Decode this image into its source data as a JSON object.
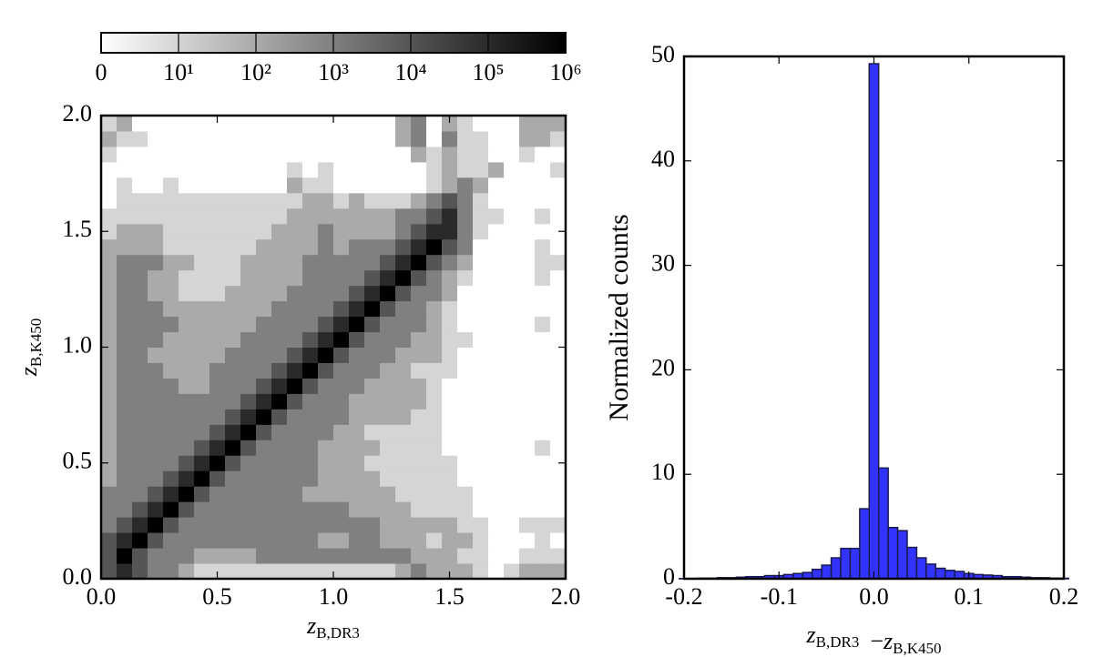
{
  "chart_data": [
    {
      "type": "heatmap",
      "x_label": {
        "symbol": "z",
        "subscript": "B,DR3"
      },
      "y_label": {
        "symbol": "z",
        "subscript": "B,K450"
      },
      "xlim": [
        0,
        2
      ],
      "ylim": [
        0,
        2
      ],
      "xticks": [
        {
          "value": 0,
          "label": "0.0"
        },
        0.5,
        {
          "value": 1,
          "label": "1.0"
        },
        1.5,
        {
          "value": 2,
          "label": "2.0"
        }
      ],
      "yticks": [
        {
          "value": 0,
          "label": "0.0"
        },
        0.5,
        {
          "value": 1,
          "label": "1.0"
        },
        1.5,
        {
          "value": 2,
          "label": "2.0"
        }
      ],
      "colorbar": {
        "colormap": "gray_r",
        "clim": [
          0,
          1000000
        ],
        "ticks": [
          0,
          {
            "value": 10,
            "label": "10¹"
          },
          {
            "value": 100,
            "label": "10²"
          },
          {
            "value": 1000,
            "label": "10³"
          },
          {
            "value": 10000,
            "label": "10⁴"
          },
          {
            "value": 100000,
            "label": "10⁵"
          },
          {
            "value": 1000000,
            "label": "10⁶"
          }
        ]
      },
      "values": [
        [
          10000,
          100000,
          10000,
          1000,
          1000,
          100,
          10,
          10,
          10,
          10,
          10,
          10,
          10,
          10,
          10,
          10,
          10,
          10,
          10,
          100,
          1000,
          100,
          100,
          100,
          10,
          0,
          10,
          100,
          100,
          100
        ],
        [
          10000,
          1000000,
          10000,
          1000,
          1000,
          1000,
          100,
          100,
          100,
          100,
          1000,
          1000,
          1000,
          1000,
          1000,
          1000,
          1000,
          1000,
          1000,
          1000,
          100,
          100,
          100,
          10,
          10,
          0,
          0,
          10,
          10,
          10
        ],
        [
          10000,
          100000,
          1000000,
          10000,
          1000,
          1000,
          1000,
          1000,
          1000,
          1000,
          1000,
          1000,
          1000,
          1000,
          100,
          100,
          1000,
          1000,
          100,
          100,
          100,
          10,
          100,
          100,
          10,
          0,
          0,
          0,
          10,
          0
        ],
        [
          1000,
          10000,
          100000,
          1000000,
          10000,
          1000,
          1000,
          1000,
          1000,
          1000,
          1000,
          1000,
          1000,
          1000,
          1000,
          1000,
          1000,
          1000,
          100,
          100,
          100,
          100,
          100,
          10,
          10,
          0,
          0,
          10,
          10,
          10
        ],
        [
          1000,
          1000,
          10000,
          100000,
          1000000,
          10000,
          1000,
          1000,
          1000,
          1000,
          1000,
          1000,
          1000,
          1000,
          1000,
          1000,
          100,
          100,
          100,
          100,
          10,
          10,
          10,
          10,
          0,
          0,
          0,
          0,
          0,
          0
        ],
        [
          1000,
          1000,
          1000,
          10000,
          100000,
          1000000,
          10000,
          1000,
          1000,
          1000,
          1000,
          1000,
          1000,
          100,
          100,
          100,
          100,
          100,
          100,
          10,
          10,
          10,
          10,
          10,
          0,
          0,
          0,
          0,
          0,
          0
        ],
        [
          100,
          1000,
          1000,
          1000,
          10000,
          100000,
          1000000,
          10000,
          1000,
          1000,
          1000,
          1000,
          1000,
          1000,
          100,
          100,
          100,
          100,
          10,
          10,
          10,
          10,
          10,
          0,
          0,
          0,
          0,
          0,
          0,
          0
        ],
        [
          100,
          1000,
          1000,
          1000,
          1000,
          10000,
          100000,
          1000000,
          10000,
          1000,
          1000,
          1000,
          1000,
          1000,
          100,
          100,
          100,
          10,
          10,
          10,
          10,
          10,
          10,
          0,
          0,
          0,
          0,
          0,
          0,
          0
        ],
        [
          100,
          1000,
          1000,
          1000,
          1000,
          1000,
          10000,
          100000,
          1000000,
          10000,
          1000,
          1000,
          1000,
          1000,
          100,
          100,
          100,
          100,
          10,
          10,
          10,
          10,
          0,
          0,
          0,
          0,
          0,
          0,
          10,
          0
        ],
        [
          100,
          1000,
          1000,
          1000,
          1000,
          1000,
          1000,
          10000,
          100000,
          1000000,
          10000,
          1000,
          1000,
          1000,
          1000,
          100,
          100,
          10,
          10,
          10,
          10,
          10,
          0,
          0,
          0,
          0,
          0,
          0,
          0,
          0
        ],
        [
          100,
          1000,
          1000,
          1000,
          1000,
          1000,
          1000,
          1000,
          10000,
          100000,
          1000000,
          10000,
          1000,
          1000,
          1000,
          1000,
          100,
          100,
          100,
          100,
          10,
          10,
          0,
          0,
          0,
          0,
          0,
          0,
          0,
          0
        ],
        [
          100,
          1000,
          1000,
          1000,
          1000,
          1000,
          1000,
          1000,
          1000,
          10000,
          100000,
          1000000,
          10000,
          1000,
          1000,
          1000,
          100,
          100,
          100,
          100,
          100,
          10,
          0,
          0,
          0,
          0,
          0,
          0,
          0,
          0
        ],
        [
          100,
          1000,
          1000,
          1000,
          1000,
          100,
          100,
          1000,
          1000,
          1000,
          10000,
          100000,
          1000000,
          10000,
          1000,
          1000,
          1000,
          100,
          100,
          100,
          100,
          10,
          0,
          0,
          0,
          0,
          0,
          0,
          0,
          0
        ],
        [
          100,
          1000,
          1000,
          1000,
          100,
          100,
          100,
          1000,
          1000,
          1000,
          1000,
          10000,
          100000,
          1000000,
          10000,
          1000,
          1000,
          1000,
          100,
          100,
          10,
          10,
          10,
          0,
          0,
          0,
          0,
          0,
          0,
          0
        ],
        [
          100,
          1000,
          1000,
          100,
          100,
          100,
          100,
          100,
          1000,
          1000,
          1000,
          1000,
          10000,
          100000,
          1000000,
          10000,
          1000,
          1000,
          1000,
          100,
          100,
          100,
          10,
          0,
          0,
          0,
          0,
          0,
          0,
          0
        ],
        [
          100,
          1000,
          1000,
          1000,
          100,
          100,
          100,
          100,
          100,
          1000,
          1000,
          1000,
          1000,
          10000,
          100000,
          1000000,
          10000,
          1000,
          1000,
          1000,
          100,
          100,
          10,
          10,
          0,
          0,
          0,
          0,
          0,
          0
        ],
        [
          100,
          1000,
          1000,
          1000,
          1000,
          100,
          100,
          100,
          100,
          100,
          1000,
          1000,
          1000,
          1000,
          10000,
          100000,
          1000000,
          10000,
          1000,
          1000,
          1000,
          100,
          10,
          0,
          0,
          0,
          0,
          0,
          10,
          0
        ],
        [
          100,
          1000,
          1000,
          1000,
          100,
          100,
          100,
          100,
          100,
          100,
          100,
          1000,
          1000,
          1000,
          1000,
          10000,
          100000,
          1000000,
          10000,
          1000,
          1000,
          100,
          10,
          0,
          0,
          0,
          0,
          0,
          0,
          0
        ],
        [
          100,
          1000,
          1000,
          100,
          100,
          10,
          10,
          10,
          100,
          100,
          100,
          100,
          1000,
          1000,
          1000,
          1000,
          10000,
          100000,
          1000000,
          10000,
          1000,
          1000,
          100,
          0,
          0,
          0,
          0,
          0,
          0,
          0
        ],
        [
          100,
          1000,
          1000,
          100,
          100,
          10,
          10,
          10,
          10,
          100,
          100,
          100,
          100,
          1000,
          1000,
          1000,
          1000,
          10000,
          100000,
          1000000,
          10000,
          1000,
          100,
          10,
          0,
          0,
          0,
          0,
          10,
          0
        ],
        [
          100,
          1000,
          1000,
          1000,
          100,
          100,
          10,
          10,
          10,
          100,
          100,
          100,
          100,
          1000,
          1000,
          1000,
          1000,
          1000,
          10000,
          100000,
          1000000,
          10000,
          1000,
          100,
          0,
          0,
          0,
          0,
          10,
          10
        ],
        [
          100,
          100,
          100,
          100,
          10,
          10,
          10,
          10,
          10,
          10,
          100,
          100,
          100,
          100,
          1000,
          100,
          1000,
          1000,
          1000,
          10000,
          100000,
          1000000,
          10000,
          1000,
          0,
          0,
          0,
          0,
          10,
          0
        ],
        [
          10,
          100,
          100,
          100,
          10,
          10,
          10,
          10,
          10,
          10,
          10,
          100,
          100,
          100,
          1000,
          100,
          100,
          100,
          100,
          1000,
          10000,
          100000,
          100000,
          1000,
          10,
          0,
          0,
          0,
          0,
          0
        ],
        [
          10,
          10,
          10,
          10,
          10,
          10,
          10,
          10,
          10,
          10,
          10,
          10,
          100,
          100,
          100,
          100,
          100,
          100,
          100,
          1000,
          1000,
          10000,
          100000,
          1000,
          10,
          10,
          0,
          0,
          10,
          0
        ],
        [
          0,
          10,
          10,
          10,
          10,
          10,
          10,
          10,
          10,
          10,
          10,
          10,
          10,
          100,
          100,
          10,
          100,
          10,
          10,
          10,
          100,
          1000,
          10000,
          1000,
          10,
          0,
          0,
          0,
          0,
          0
        ],
        [
          0,
          10,
          0,
          0,
          10,
          0,
          0,
          0,
          0,
          0,
          0,
          0,
          100,
          10,
          10,
          0,
          0,
          0,
          0,
          0,
          0,
          10,
          100,
          1000,
          100,
          0,
          0,
          0,
          0,
          0
        ],
        [
          0,
          0,
          0,
          0,
          0,
          0,
          0,
          0,
          0,
          0,
          0,
          0,
          10,
          0,
          10,
          0,
          0,
          0,
          0,
          0,
          0,
          10,
          100,
          10,
          10,
          100,
          0,
          0,
          0,
          10
        ],
        [
          10,
          0,
          0,
          0,
          0,
          0,
          0,
          0,
          0,
          0,
          0,
          0,
          0,
          0,
          0,
          0,
          0,
          0,
          0,
          0,
          100,
          10,
          100,
          10,
          10,
          0,
          0,
          10,
          0,
          0
        ],
        [
          100,
          10,
          10,
          0,
          0,
          0,
          0,
          0,
          0,
          0,
          0,
          0,
          0,
          0,
          0,
          0,
          0,
          0,
          0,
          100,
          1000,
          0,
          1000,
          10,
          10,
          0,
          0,
          100,
          100,
          10
        ],
        [
          10,
          100,
          0,
          0,
          0,
          0,
          0,
          0,
          0,
          0,
          0,
          0,
          0,
          0,
          0,
          0,
          0,
          0,
          0,
          100,
          1000,
          0,
          100,
          10,
          0,
          0,
          0,
          100,
          100,
          100
        ]
      ]
    },
    {
      "type": "histogram",
      "x_label": [
        {
          "symbol": "z",
          "subscript": "B,DR3"
        },
        {
          "operator": "−"
        },
        {
          "symbol": "z",
          "subscript": "B,K450"
        }
      ],
      "y_label": "Normalized counts",
      "xlim": [
        -0.2,
        0.2
      ],
      "ylim": [
        0,
        50
      ],
      "xticks": [
        -0.2,
        -0.1,
        {
          "value": 0,
          "label": "0.0"
        },
        0.1,
        0.2
      ],
      "yticks": [
        0,
        10,
        20,
        30,
        40,
        50
      ],
      "color": "#3333ff",
      "edgecolor": "#1a1a4d",
      "bins": [
        -0.205,
        -0.195,
        -0.185,
        -0.175,
        -0.165,
        -0.155,
        -0.145,
        -0.135,
        -0.125,
        -0.115,
        -0.105,
        -0.095,
        -0.085,
        -0.075,
        -0.065,
        -0.055,
        -0.045,
        -0.035,
        -0.025,
        -0.015,
        -0.005,
        0.005,
        0.015,
        0.025,
        0.035,
        0.045,
        0.055,
        0.065,
        0.075,
        0.085,
        0.095,
        0.105,
        0.115,
        0.125,
        0.135,
        0.145,
        0.155,
        0.165,
        0.175,
        0.185,
        0.195,
        0.205
      ],
      "values": [
        0.02,
        0.03,
        0.05,
        0.05,
        0.1,
        0.1,
        0.15,
        0.2,
        0.2,
        0.3,
        0.3,
        0.4,
        0.5,
        0.6,
        0.9,
        1.3,
        2.0,
        2.9,
        2.9,
        6.7,
        49.3,
        10.6,
        4.9,
        4.6,
        3.0,
        2.0,
        1.4,
        1.0,
        0.8,
        0.7,
        0.5,
        0.4,
        0.35,
        0.3,
        0.2,
        0.2,
        0.15,
        0.1,
        0.1,
        0.05,
        0.05
      ]
    }
  ]
}
